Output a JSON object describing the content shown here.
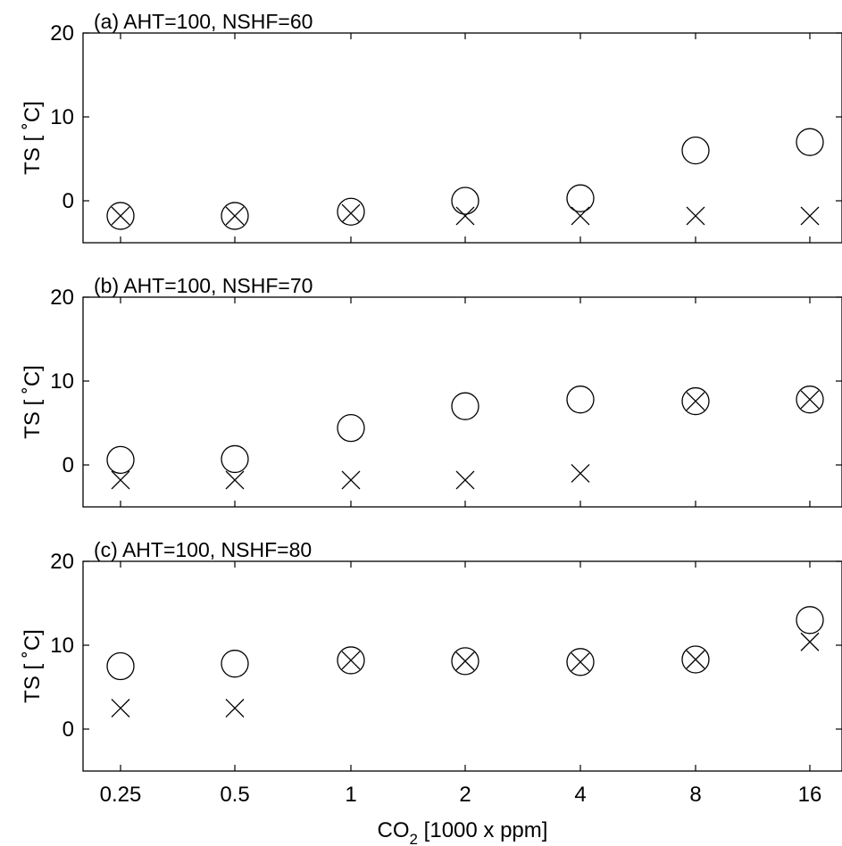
{
  "chart_data": [
    {
      "type": "scatter",
      "title": "(a) AHT=100, NSHF=60",
      "xlabel": "",
      "ylabel": "TS [ ˚C]",
      "ylim": [
        -5,
        20
      ],
      "y_ticks": [
        "0",
        "10",
        "20"
      ],
      "categories": [
        "0.25",
        "0.5",
        "1",
        "2",
        "4",
        "8",
        "16"
      ],
      "series": [
        {
          "marker": "circle",
          "values": [
            -1.8,
            -1.8,
            -1.3,
            0.0,
            0.3,
            6.0,
            7.0
          ]
        },
        {
          "marker": "x",
          "values": [
            -1.8,
            -1.8,
            -1.5,
            -1.8,
            -1.8,
            -1.8,
            -1.8
          ]
        }
      ]
    },
    {
      "type": "scatter",
      "title": "(b) AHT=100, NSHF=70",
      "xlabel": "",
      "ylabel": "TS [ ˚C]",
      "ylim": [
        -5,
        20
      ],
      "y_ticks": [
        "0",
        "10",
        "20"
      ],
      "categories": [
        "0.25",
        "0.5",
        "1",
        "2",
        "4",
        "8",
        "16"
      ],
      "series": [
        {
          "marker": "circle",
          "values": [
            0.6,
            0.7,
            4.4,
            7.0,
            7.8,
            7.6,
            7.8
          ]
        },
        {
          "marker": "x",
          "values": [
            -1.8,
            -1.8,
            -1.8,
            -1.8,
            -1.0,
            7.6,
            7.8
          ]
        }
      ]
    },
    {
      "type": "scatter",
      "title": "(c) AHT=100, NSHF=80",
      "xlabel": "CO2 [1000 x ppm]",
      "ylabel": "TS [ ˚C]",
      "ylim": [
        -5,
        20
      ],
      "y_ticks": [
        "0",
        "10",
        "20"
      ],
      "categories": [
        "0.25",
        "0.5",
        "1",
        "2",
        "4",
        "8",
        "16"
      ],
      "series": [
        {
          "marker": "circle",
          "values": [
            7.5,
            7.8,
            8.2,
            8.1,
            8.0,
            8.3,
            13.0
          ]
        },
        {
          "marker": "x",
          "values": [
            2.5,
            2.5,
            8.2,
            8.1,
            8.0,
            8.3,
            10.4
          ]
        }
      ]
    }
  ],
  "x_axis_label": {
    "main": "CO",
    "sub": "2",
    "rest": " [1000 x ppm]"
  },
  "colors": {
    "marker": "#000000",
    "axes": "#000000",
    "background": "#ffffff"
  }
}
